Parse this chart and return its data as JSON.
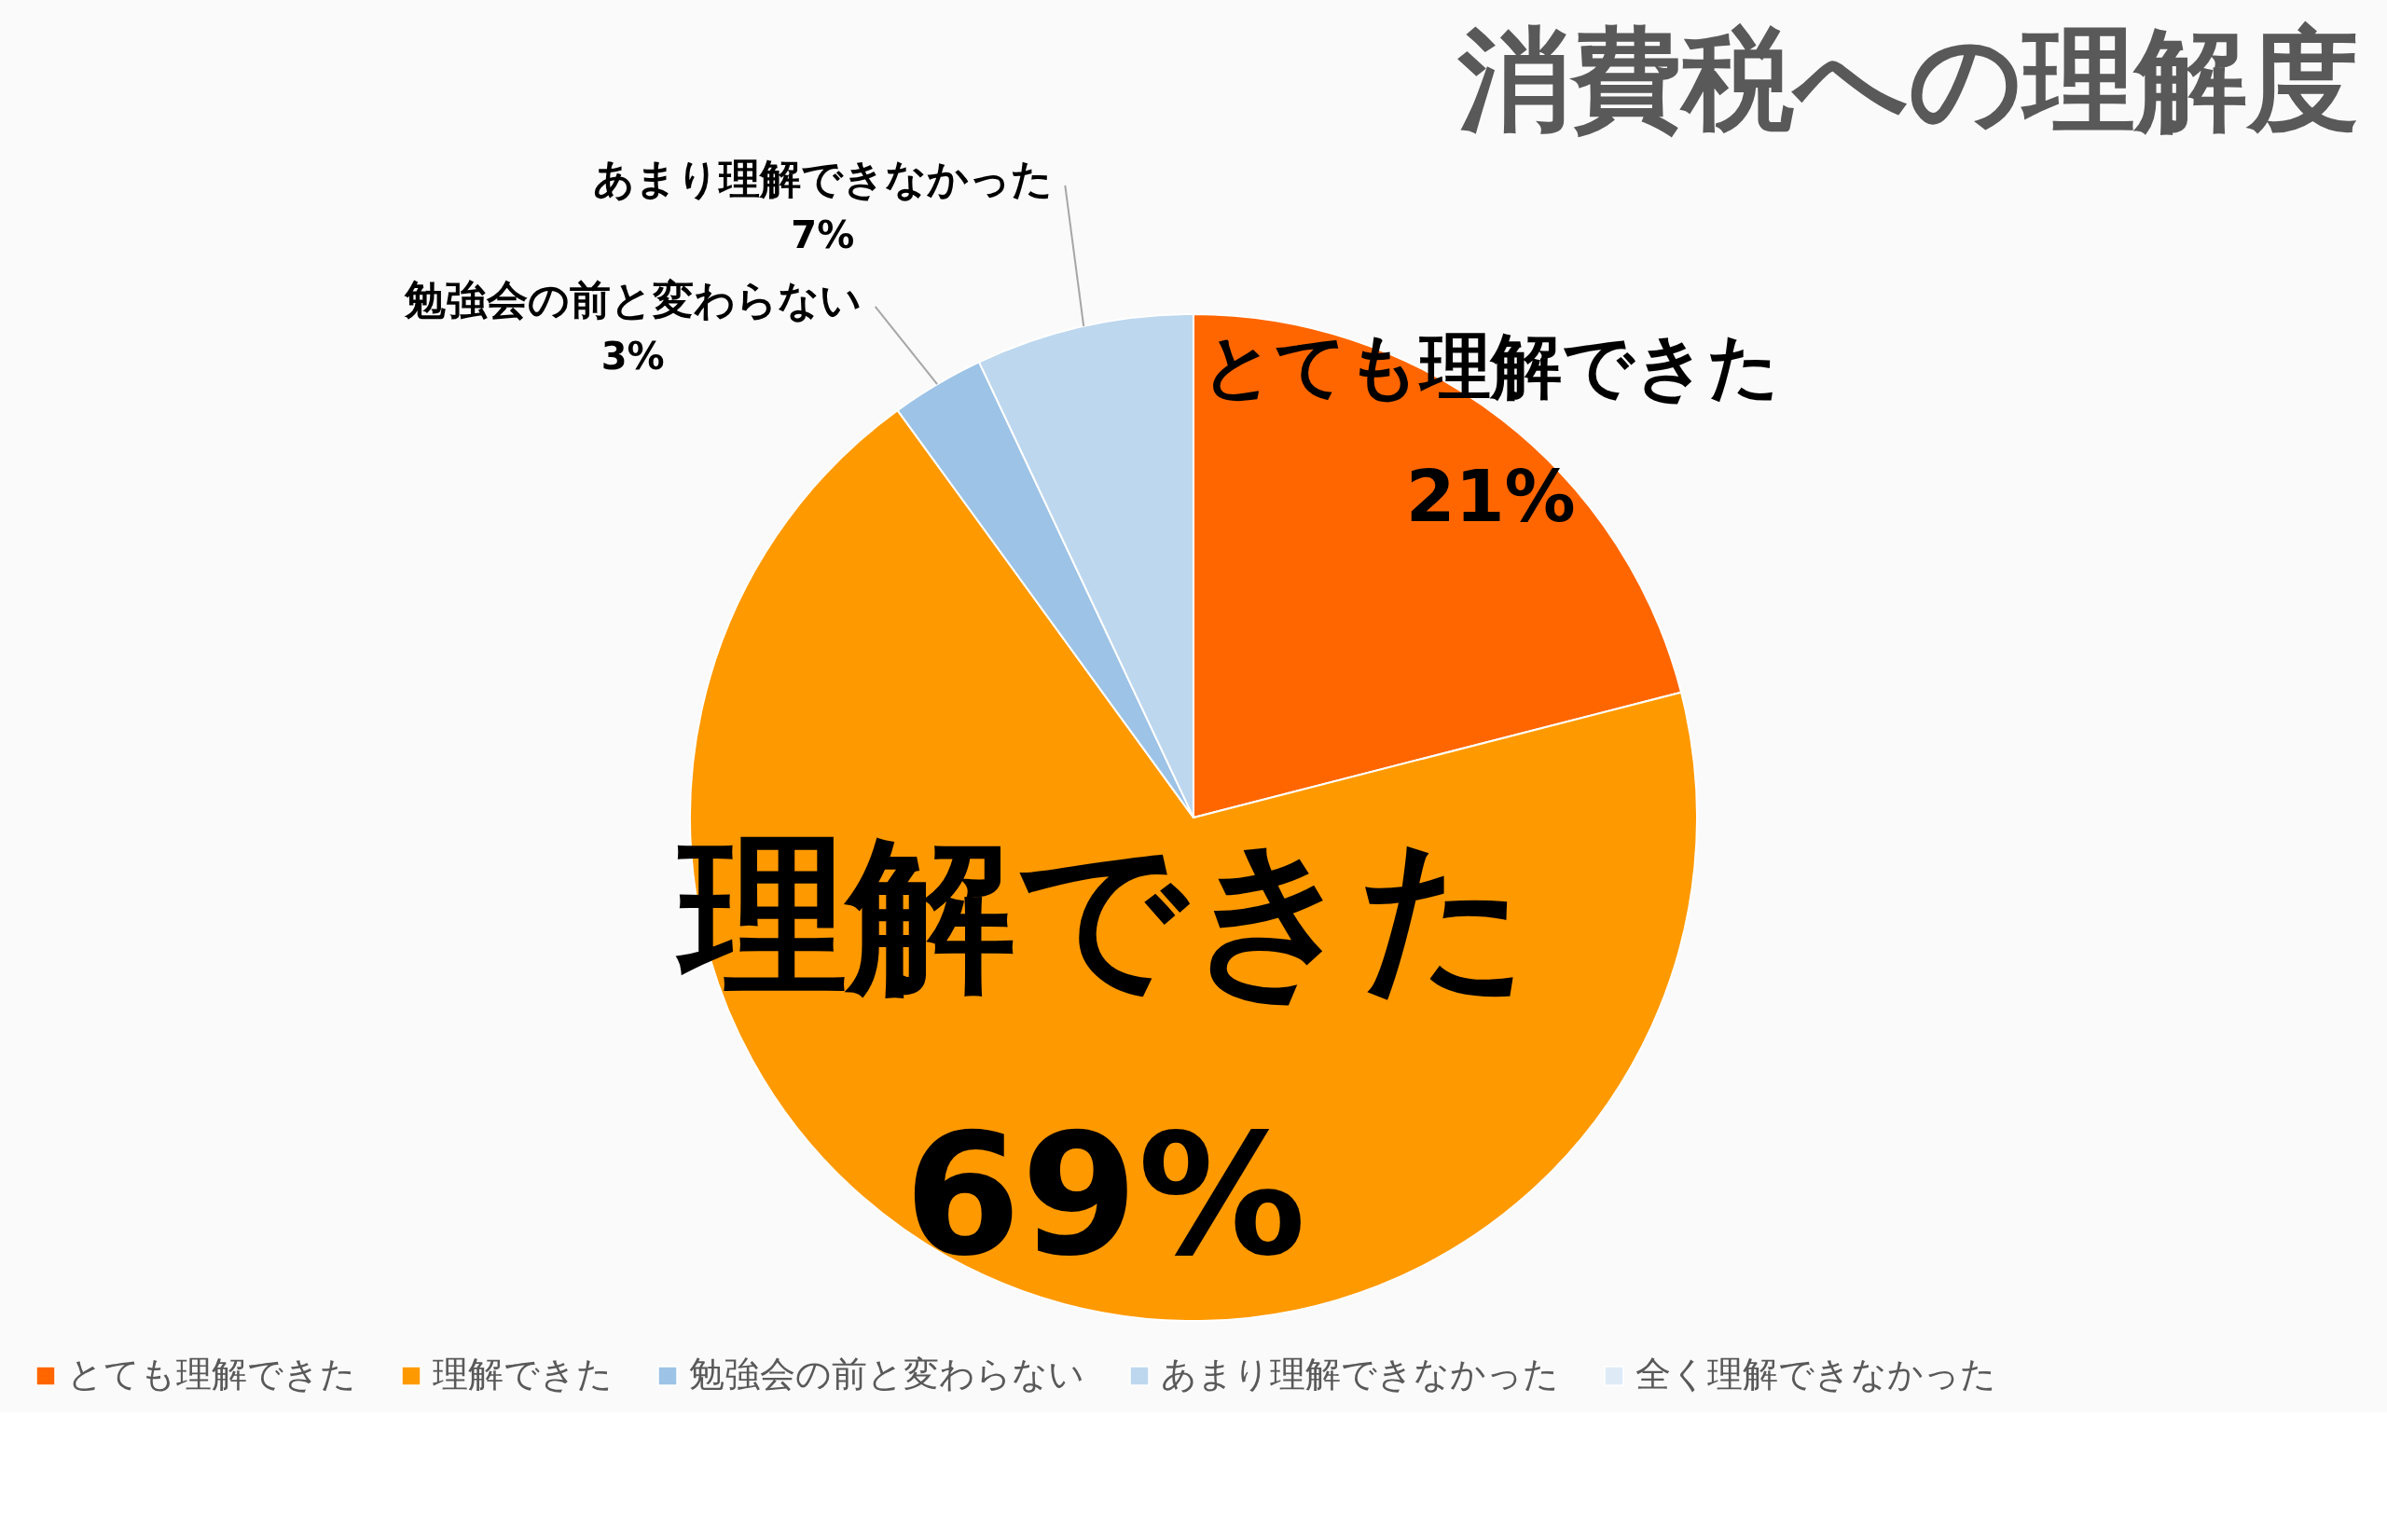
{
  "chart_data": {
    "type": "pie",
    "title": "消費税への理解度",
    "categories": [
      "とても理解できた",
      "理解できた",
      "勉強会の前と変わらない",
      "あまり理解できなかった",
      "全く理解できなかった"
    ],
    "values": [
      21,
      69,
      3,
      7,
      0
    ],
    "colors": [
      "#ff6600",
      "#ff9900",
      "#9dc3e6",
      "#bdd7ee",
      "#deebf7"
    ],
    "value_labels": [
      "21%",
      "69%",
      "3%",
      "7%",
      null
    ],
    "legend": "bottom"
  }
}
